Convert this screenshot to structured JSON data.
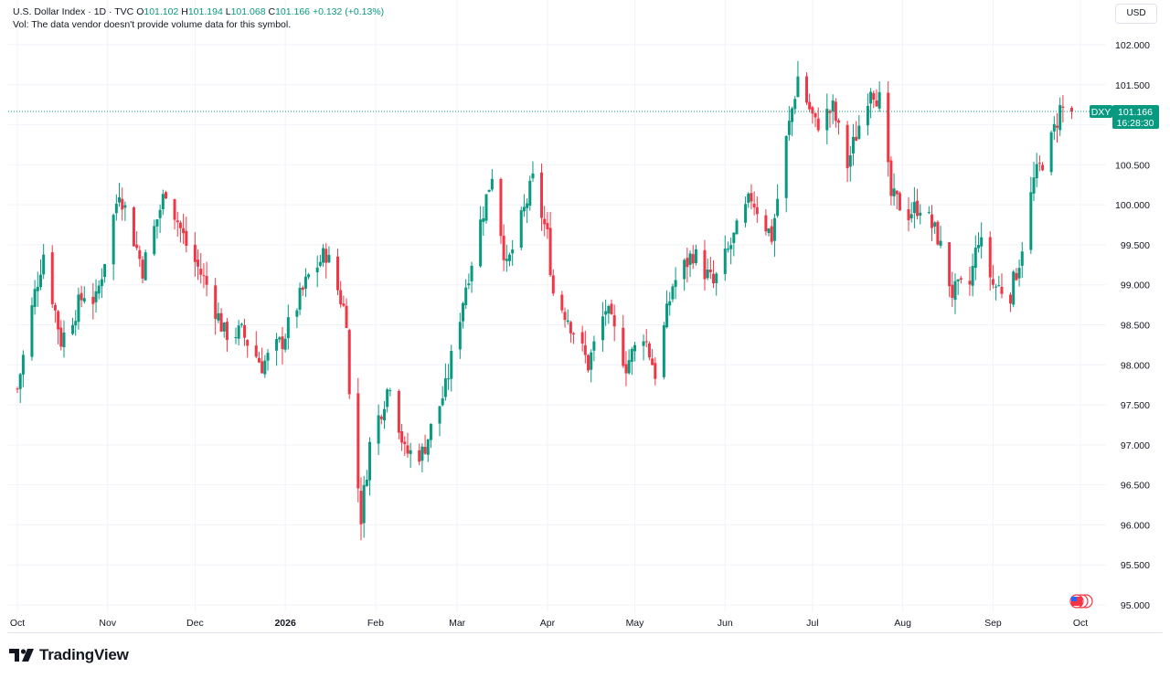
{
  "legend": {
    "symbol": "U.S. Dollar Index · 1D · TVC",
    "open_label": "O",
    "open": "101.102",
    "high_label": "H",
    "high": "101.194",
    "low_label": "L",
    "low": "101.068",
    "close_label": "C",
    "close": "101.166",
    "change": "+0.132 (+0.13%)"
  },
  "volume_note": "Vol: The data vendor doesn't provide volume data for this symbol.",
  "currency": "USD",
  "brand": "TradingView",
  "colors": {
    "up": "#089981",
    "down": "#f23645",
    "grid": "#f0f3fa",
    "price_line": "#089981"
  },
  "chart_data": {
    "type": "candlestick",
    "title": "U.S. Dollar Index · 1D · TVC",
    "ticker": "DXY",
    "last_price": "101.166",
    "countdown": "16:28:30",
    "y_ticks": [
      "102.000",
      "101.500",
      "101.000",
      "100.500",
      "100.000",
      "99.500",
      "99.000",
      "98.500",
      "98.000",
      "97.500",
      "97.000",
      "96.500",
      "96.000",
      "95.500",
      "95.000"
    ],
    "x_ticks": [
      "Oct",
      "Nov",
      "Dec",
      "2026",
      "Feb",
      "Mar",
      "Apr",
      "May",
      "Jun",
      "Jul",
      "Aug",
      "Sep",
      "Oct"
    ],
    "ylim": [
      95.0,
      102.0
    ],
    "grid": true,
    "anchors": [
      {
        "date": "2025-10-01",
        "close": 97.7
      },
      {
        "date": "2025-10-07",
        "close": 98.9
      },
      {
        "date": "2025-10-10",
        "close": 99.4
      },
      {
        "date": "2025-10-16",
        "close": 98.3
      },
      {
        "date": "2025-10-24",
        "close": 98.9
      },
      {
        "date": "2025-10-28",
        "close": 98.8
      },
      {
        "date": "2025-11-05",
        "close": 100.2
      },
      {
        "date": "2025-11-13",
        "close": 99.2
      },
      {
        "date": "2025-11-21",
        "close": 100.2
      },
      {
        "date": "2025-11-28",
        "close": 99.5
      },
      {
        "date": "2025-12-05",
        "close": 99.0
      },
      {
        "date": "2025-12-11",
        "close": 98.4
      },
      {
        "date": "2025-12-17",
        "close": 98.4
      },
      {
        "date": "2025-12-24",
        "close": 98.0
      },
      {
        "date": "2025-12-31",
        "close": 98.3
      },
      {
        "date": "2026-01-09",
        "close": 99.1
      },
      {
        "date": "2026-01-15",
        "close": 99.4
      },
      {
        "date": "2026-01-22",
        "close": 98.6
      },
      {
        "date": "2026-01-23",
        "close": 97.6
      },
      {
        "date": "2026-01-27",
        "close": 96.1
      },
      {
        "date": "2026-01-30",
        "close": 97.0
      },
      {
        "date": "2026-02-06",
        "close": 97.8
      },
      {
        "date": "2026-02-11",
        "close": 96.9
      },
      {
        "date": "2026-02-17",
        "close": 96.9
      },
      {
        "date": "2026-02-25",
        "close": 97.7
      },
      {
        "date": "2026-03-04",
        "close": 99.0
      },
      {
        "date": "2026-03-13",
        "close": 100.4
      },
      {
        "date": "2026-03-18",
        "close": 99.2
      },
      {
        "date": "2026-03-23",
        "close": 99.8
      },
      {
        "date": "2026-03-27",
        "close": 100.3
      },
      {
        "date": "2026-04-01",
        "close": 99.6
      },
      {
        "date": "2026-04-03",
        "close": 98.9
      },
      {
        "date": "2026-04-08",
        "close": 98.6
      },
      {
        "date": "2026-04-15",
        "close": 98.0
      },
      {
        "date": "2026-04-21",
        "close": 98.7
      },
      {
        "date": "2026-04-28",
        "close": 98.0
      },
      {
        "date": "2026-05-04",
        "close": 98.4
      },
      {
        "date": "2026-05-08",
        "close": 97.9
      },
      {
        "date": "2026-05-14",
        "close": 99.0
      },
      {
        "date": "2026-05-21",
        "close": 99.4
      },
      {
        "date": "2026-05-28",
        "close": 99.0
      },
      {
        "date": "2026-06-03",
        "close": 99.5
      },
      {
        "date": "2026-06-10",
        "close": 100.1
      },
      {
        "date": "2026-06-17",
        "close": 99.6
      },
      {
        "date": "2026-06-22",
        "close": 100.8
      },
      {
        "date": "2026-06-26",
        "close": 101.6
      },
      {
        "date": "2026-07-02",
        "close": 101.0
      },
      {
        "date": "2026-07-08",
        "close": 101.2
      },
      {
        "date": "2026-07-13",
        "close": 100.5
      },
      {
        "date": "2026-07-21",
        "close": 101.5
      },
      {
        "date": "2026-07-24",
        "close": 101.3
      },
      {
        "date": "2026-07-28",
        "close": 100.1
      },
      {
        "date": "2026-08-03",
        "close": 99.9
      },
      {
        "date": "2026-08-07",
        "close": 100.0
      },
      {
        "date": "2026-08-13",
        "close": 99.6
      },
      {
        "date": "2026-08-18",
        "close": 98.9
      },
      {
        "date": "2026-08-24",
        "close": 99.0
      },
      {
        "date": "2026-08-27",
        "close": 99.6
      },
      {
        "date": "2026-09-01",
        "close": 99.0
      },
      {
        "date": "2026-09-07",
        "close": 98.9
      },
      {
        "date": "2026-09-10",
        "close": 99.3
      },
      {
        "date": "2026-09-15",
        "close": 100.3
      },
      {
        "date": "2026-09-21",
        "close": 100.8
      },
      {
        "date": "2026-09-24",
        "close": 101.2
      },
      {
        "date": "2026-09-28",
        "close": 101.166
      }
    ]
  }
}
